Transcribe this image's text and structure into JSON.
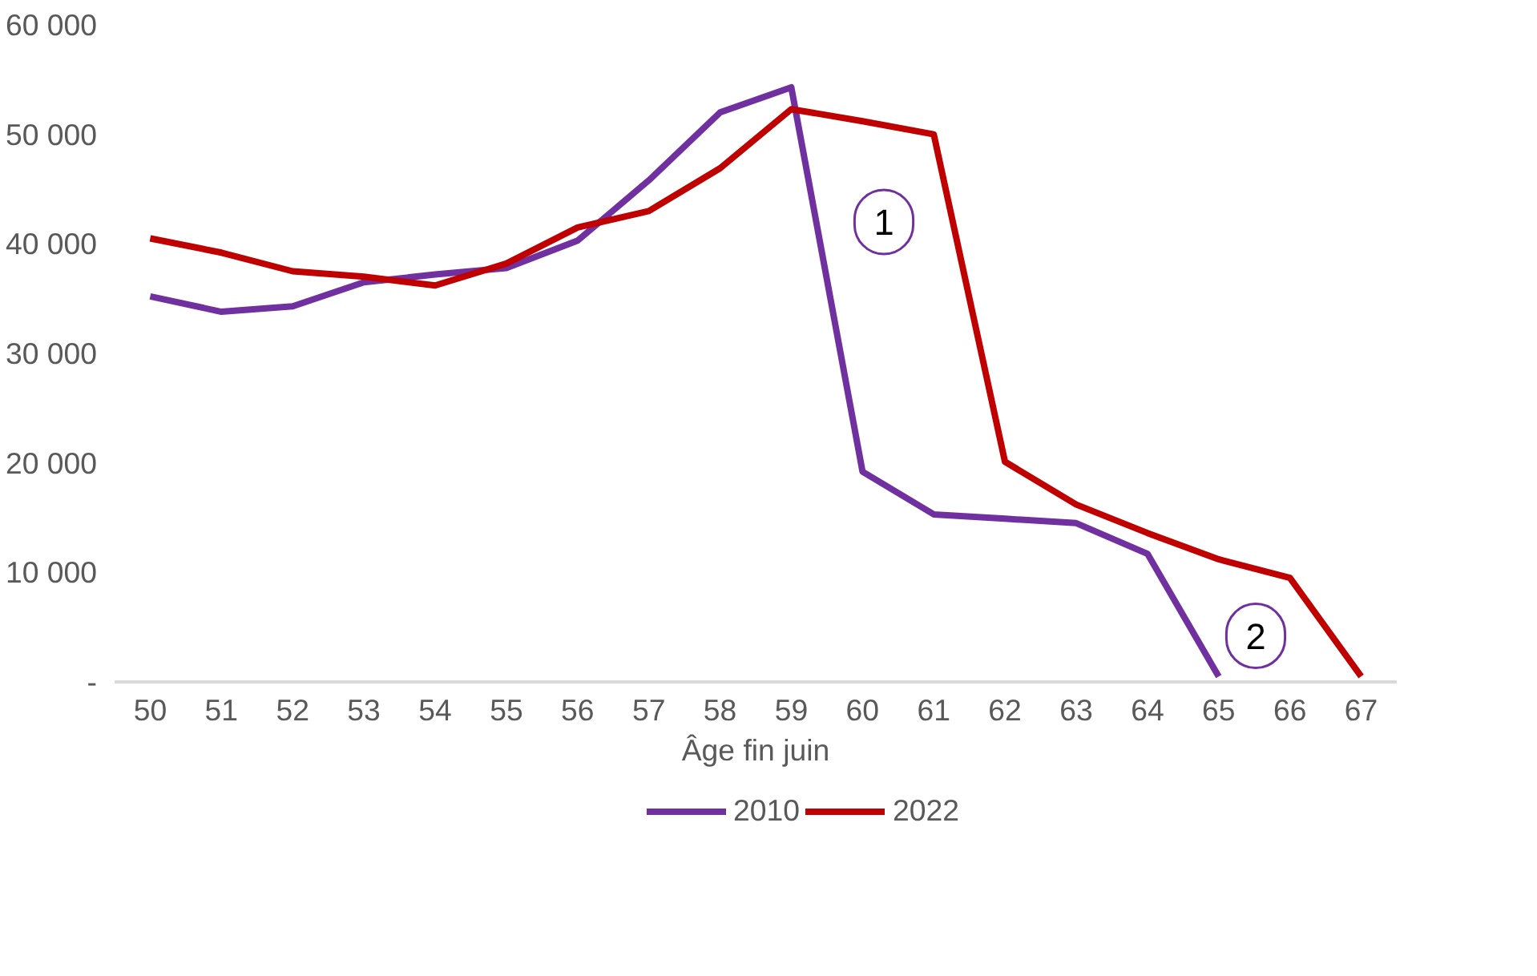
{
  "chart_data": {
    "type": "line",
    "xlabel": "Âge fin juin",
    "categories": [
      "50",
      "51",
      "52",
      "53",
      "54",
      "55",
      "56",
      "57",
      "58",
      "59",
      "60",
      "61",
      "62",
      "63",
      "64",
      "65",
      "66",
      "67"
    ],
    "series": [
      {
        "name": "2010",
        "color": "#7030a0",
        "values": [
          35200,
          33800,
          34300,
          36500,
          37200,
          37800,
          40300,
          45800,
          52000,
          54300,
          19200,
          15300,
          14900,
          14500,
          11700,
          500,
          null,
          null
        ]
      },
      {
        "name": "2022",
        "color": "#c00000",
        "values": [
          40500,
          39200,
          37500,
          37000,
          36200,
          38200,
          41500,
          43000,
          46900,
          52300,
          51200,
          50000,
          20100,
          16200,
          13600,
          11200,
          9500,
          500
        ]
      }
    ],
    "ylim": [
      0,
      60000
    ],
    "yticks": [
      {
        "value": 0,
        "label": "-"
      },
      {
        "value": 10000,
        "label": "10 000"
      },
      {
        "value": 20000,
        "label": "20 000"
      },
      {
        "value": 30000,
        "label": "30 000"
      },
      {
        "value": 40000,
        "label": "40 000"
      },
      {
        "value": 50000,
        "label": "50 000"
      },
      {
        "value": 60000,
        "label": "60 000"
      }
    ],
    "annotations": [
      "1",
      "2"
    ],
    "grid": false,
    "legend": "bottom",
    "marker": "none",
    "line_style": "solid"
  }
}
